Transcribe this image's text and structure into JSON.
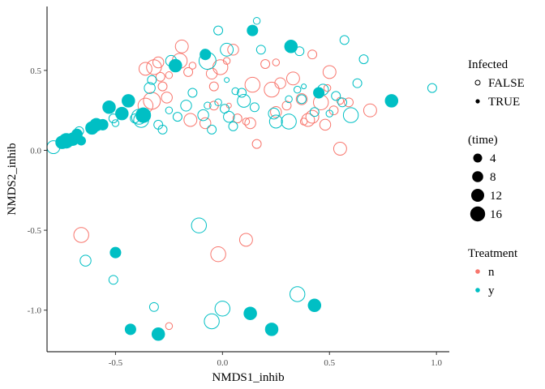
{
  "chart_data": {
    "type": "scatter",
    "title": "",
    "xlabel": "NMDS1_inhib",
    "ylabel": "NMDS2_inhib",
    "xlim": [
      -0.82,
      1.06
    ],
    "ylim": [
      -1.26,
      0.9
    ],
    "xticks": [
      -0.5,
      0.0,
      0.5,
      1.0
    ],
    "xtick_labels": [
      "-0.5",
      "0.0",
      "0.5",
      "1.0"
    ],
    "yticks": [
      0.5,
      0.0,
      -0.5,
      -1.0
    ],
    "ytick_labels": [
      "0.5",
      "0.0",
      "-0.5",
      "-1.0"
    ],
    "grid": false,
    "legend_position": "right",
    "colors": {
      "n": "#F8766D",
      "y": "#00BFC4"
    },
    "legends": {
      "infected": {
        "title": "Infected",
        "items": [
          "FALSE",
          "TRUE"
        ]
      },
      "time": {
        "title": "(time)",
        "items": [
          "4",
          "8",
          "12",
          "16"
        ]
      },
      "treatment": {
        "title": "Treatment",
        "items": [
          "n",
          "y"
        ]
      }
    },
    "series": [
      {
        "treatment": "n",
        "points": [
          [
            -0.36,
            0.51,
            12,
            false
          ],
          [
            -0.32,
            0.52,
            14,
            false
          ],
          [
            -0.3,
            0.55,
            10,
            false
          ],
          [
            -0.29,
            0.46,
            8,
            false
          ],
          [
            -0.25,
            0.47,
            6,
            false
          ],
          [
            -0.2,
            0.56,
            14,
            false
          ],
          [
            -0.19,
            0.65,
            12,
            false
          ],
          [
            -0.16,
            0.49,
            8,
            false
          ],
          [
            -0.14,
            0.53,
            6,
            false
          ],
          [
            -0.05,
            0.48,
            10,
            false
          ],
          [
            -0.04,
            0.4,
            8,
            false
          ],
          [
            -0.01,
            0.52,
            14,
            false
          ],
          [
            0.02,
            0.56,
            6,
            false
          ],
          [
            0.03,
            0.28,
            4,
            false
          ],
          [
            0.05,
            0.63,
            10,
            false
          ],
          [
            0.14,
            0.41,
            14,
            false
          ],
          [
            0.2,
            0.54,
            8,
            false
          ],
          [
            0.23,
            0.38,
            14,
            false
          ],
          [
            0.25,
            0.55,
            6,
            false
          ],
          [
            0.27,
            0.42,
            10,
            false
          ],
          [
            0.3,
            0.28,
            8,
            false
          ],
          [
            0.33,
            0.45,
            12,
            false
          ],
          [
            0.37,
            0.32,
            10,
            false
          ],
          [
            0.38,
            0.18,
            6,
            false
          ],
          [
            0.42,
            0.6,
            8,
            false
          ],
          [
            0.42,
            0.21,
            12,
            false
          ],
          [
            0.46,
            0.3,
            14,
            false
          ],
          [
            0.48,
            0.16,
            10,
            false
          ],
          [
            0.5,
            0.49,
            12,
            false
          ],
          [
            0.52,
            0.25,
            8,
            false
          ],
          [
            0.55,
            0.31,
            6,
            false
          ],
          [
            0.55,
            0.01,
            12,
            false
          ],
          [
            0.59,
            0.3,
            8,
            false
          ],
          [
            0.69,
            0.25,
            12,
            false
          ],
          [
            0.49,
            0.39,
            6,
            false
          ],
          [
            -0.36,
            0.28,
            14,
            false
          ],
          [
            -0.33,
            0.31,
            16,
            false
          ],
          [
            -0.28,
            0.4,
            8,
            false
          ],
          [
            -0.15,
            0.19,
            12,
            false
          ],
          [
            -0.08,
            0.17,
            10,
            false
          ],
          [
            -0.04,
            0.28,
            8,
            false
          ],
          [
            0.07,
            0.2,
            8,
            false
          ],
          [
            0.11,
            0.18,
            6,
            false
          ],
          [
            0.13,
            0.17,
            10,
            false
          ],
          [
            0.16,
            0.04,
            8,
            false
          ],
          [
            0.25,
            0.24,
            10,
            false
          ],
          [
            0.4,
            0.19,
            12,
            false
          ],
          [
            -0.26,
            0.33,
            10,
            false
          ],
          [
            -0.66,
            -0.53,
            14,
            false
          ],
          [
            0.11,
            -0.56,
            12,
            false
          ],
          [
            -0.02,
            -0.65,
            14,
            false
          ],
          [
            -0.25,
            -1.1,
            6,
            false
          ]
        ]
      },
      {
        "treatment": "y",
        "points": [
          [
            -0.79,
            0.02,
            12,
            false
          ],
          [
            -0.75,
            0.05,
            12,
            true
          ],
          [
            -0.73,
            0.06,
            14,
            true
          ],
          [
            -0.7,
            0.07,
            12,
            true
          ],
          [
            -0.68,
            0.1,
            10,
            true
          ],
          [
            -0.67,
            0.12,
            8,
            false
          ],
          [
            -0.66,
            0.06,
            8,
            true
          ],
          [
            -0.61,
            0.14,
            12,
            true
          ],
          [
            -0.56,
            0.16,
            10,
            true
          ],
          [
            -0.53,
            0.27,
            12,
            true
          ],
          [
            -0.5,
            0.17,
            6,
            false
          ],
          [
            -0.47,
            0.23,
            12,
            true
          ],
          [
            -0.44,
            0.31,
            12,
            true
          ],
          [
            -0.41,
            0.2,
            8,
            false
          ],
          [
            -0.39,
            0.21,
            14,
            false
          ],
          [
            -0.38,
            0.19,
            14,
            false
          ],
          [
            -0.37,
            0.22,
            14,
            true
          ],
          [
            -0.34,
            0.39,
            10,
            false
          ],
          [
            -0.33,
            0.44,
            8,
            false
          ],
          [
            -0.3,
            0.16,
            8,
            false
          ],
          [
            -0.28,
            0.13,
            8,
            false
          ],
          [
            -0.25,
            0.25,
            6,
            false
          ],
          [
            -0.22,
            0.53,
            12,
            true
          ],
          [
            -0.21,
            0.21,
            8,
            false
          ],
          [
            -0.17,
            0.28,
            10,
            false
          ],
          [
            -0.14,
            0.36,
            8,
            false
          ],
          [
            -0.09,
            0.22,
            10,
            false
          ],
          [
            -0.08,
            0.6,
            10,
            true
          ],
          [
            -0.07,
            0.28,
            6,
            false
          ],
          [
            -0.05,
            0.13,
            8,
            false
          ],
          [
            -0.02,
            0.3,
            6,
            false
          ],
          [
            0.01,
            0.26,
            8,
            false
          ],
          [
            0.03,
            0.21,
            10,
            false
          ],
          [
            0.05,
            0.15,
            8,
            false
          ],
          [
            0.06,
            0.37,
            6,
            false
          ],
          [
            -0.07,
            0.56,
            16,
            false
          ],
          [
            -0.24,
            0.56,
            10,
            false
          ],
          [
            0.02,
            0.44,
            4,
            false
          ],
          [
            0.02,
            0.63,
            12,
            false
          ],
          [
            -0.02,
            0.75,
            8,
            false
          ],
          [
            0.09,
            0.36,
            8,
            false
          ],
          [
            0.14,
            0.75,
            10,
            true
          ],
          [
            0.16,
            0.81,
            6,
            false
          ],
          [
            0.18,
            0.63,
            8,
            false
          ],
          [
            0.15,
            0.27,
            8,
            false
          ],
          [
            0.1,
            0.31,
            12,
            false
          ],
          [
            0.24,
            0.23,
            10,
            false
          ],
          [
            0.25,
            0.18,
            12,
            false
          ],
          [
            0.31,
            0.18,
            14,
            false
          ],
          [
            0.32,
            0.65,
            12,
            true
          ],
          [
            0.35,
            0.38,
            6,
            false
          ],
          [
            0.36,
            0.62,
            8,
            false
          ],
          [
            0.37,
            0.32,
            8,
            false
          ],
          [
            0.38,
            0.4,
            4,
            false
          ],
          [
            0.43,
            0.24,
            8,
            false
          ],
          [
            0.45,
            0.36,
            10,
            true
          ],
          [
            0.47,
            0.38,
            10,
            false
          ],
          [
            0.5,
            0.23,
            6,
            false
          ],
          [
            0.53,
            0.34,
            8,
            false
          ],
          [
            0.56,
            0.3,
            8,
            false
          ],
          [
            0.57,
            0.69,
            8,
            false
          ],
          [
            0.6,
            0.22,
            14,
            false
          ],
          [
            0.63,
            0.42,
            8,
            false
          ],
          [
            0.66,
            0.57,
            8,
            false
          ],
          [
            0.79,
            0.31,
            12,
            true
          ],
          [
            0.98,
            0.39,
            8,
            false
          ],
          [
            0.31,
            0.32,
            6,
            false
          ],
          [
            -0.51,
            0.2,
            8,
            false
          ],
          [
            -0.59,
            0.16,
            12,
            true
          ],
          [
            -0.5,
            -0.64,
            10,
            true
          ],
          [
            -0.64,
            -0.69,
            10,
            false
          ],
          [
            -0.51,
            -0.81,
            8,
            false
          ],
          [
            -0.11,
            -0.47,
            14,
            false
          ],
          [
            -0.32,
            -0.98,
            8,
            false
          ],
          [
            0.35,
            -0.9,
            14,
            false
          ],
          [
            -0.43,
            -1.12,
            10,
            true
          ],
          [
            -0.3,
            -1.15,
            12,
            true
          ],
          [
            -0.05,
            -1.07,
            14,
            false
          ],
          [
            0.0,
            -0.99,
            14,
            false
          ],
          [
            0.13,
            -1.02,
            12,
            true
          ],
          [
            0.23,
            -1.12,
            12,
            true
          ],
          [
            0.43,
            -0.97,
            12,
            true
          ]
        ]
      }
    ]
  }
}
